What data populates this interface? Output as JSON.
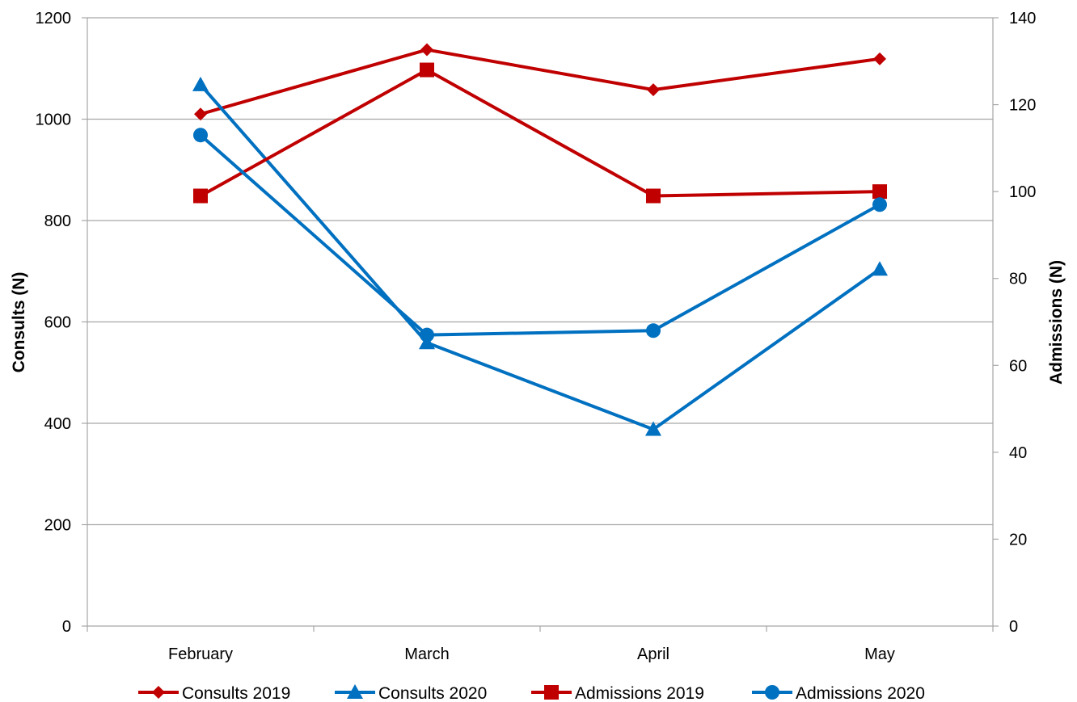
{
  "chart_data": {
    "type": "line",
    "categories": [
      "February",
      "March",
      "April",
      "May"
    ],
    "ylabel": "Consults (N)",
    "y2label": "Admissions (N)",
    "ylim": [
      0,
      1200
    ],
    "y2lim": [
      0,
      140
    ],
    "yticks": [
      0,
      200,
      400,
      600,
      800,
      1000,
      1200
    ],
    "y2ticks": [
      0,
      20,
      40,
      60,
      80,
      100,
      120,
      140
    ],
    "grid": true,
    "legend_position": "bottom",
    "series": [
      {
        "name": "Consults 2019",
        "axis": "left",
        "color": "#C00000",
        "marker": "diamond",
        "values": [
          1010,
          1137,
          1058,
          1119
        ]
      },
      {
        "name": "Consults 2020",
        "axis": "left",
        "color": "#0070C0",
        "marker": "triangle",
        "values": [
          1068,
          559,
          388,
          704
        ]
      },
      {
        "name": "Admissions 2019",
        "axis": "right",
        "color": "#C00000",
        "marker": "square",
        "values": [
          99,
          128,
          99,
          100
        ]
      },
      {
        "name": "Admissions 2020",
        "axis": "right",
        "color": "#0070C0",
        "marker": "circle",
        "values": [
          113,
          67,
          68,
          97
        ]
      }
    ]
  }
}
